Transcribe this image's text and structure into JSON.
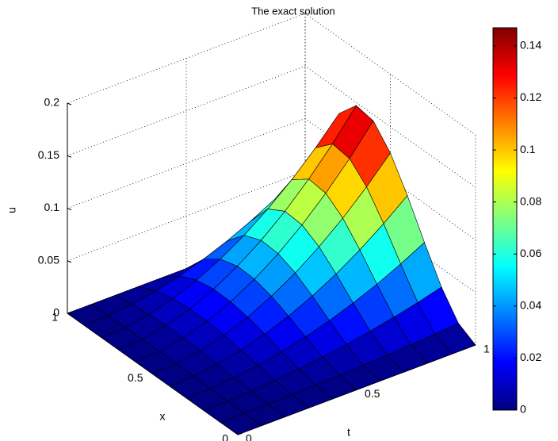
{
  "chart_data": {
    "type": "surface",
    "title": "The exact solution",
    "xlabel": "x",
    "ylabel": "t",
    "zlabel": "u",
    "x": [
      0,
      0.1,
      0.2,
      0.3,
      0.4,
      0.5,
      0.6,
      0.7,
      0.8,
      0.9,
      1
    ],
    "y": [
      0,
      0.1,
      0.2,
      0.3,
      0.4,
      0.5,
      0.6,
      0.7,
      0.8,
      0.9,
      1
    ],
    "z": [
      [
        0,
        0,
        0,
        0,
        0,
        0,
        0,
        0,
        0,
        0,
        0
      ],
      [
        0,
        0.0001,
        0.0003,
        0.0006,
        0.001,
        0.0013,
        0.0014,
        0.0015,
        0.0013,
        0.0008,
        0
      ],
      [
        0,
        0.0004,
        0.0013,
        0.0025,
        0.0038,
        0.005,
        0.0058,
        0.0059,
        0.0051,
        0.0032,
        0
      ],
      [
        0,
        0.0008,
        0.0029,
        0.0057,
        0.0086,
        0.0113,
        0.013,
        0.0132,
        0.0115,
        0.0073,
        0
      ],
      [
        0,
        0.0014,
        0.0051,
        0.0101,
        0.0154,
        0.02,
        0.023,
        0.0235,
        0.0205,
        0.013,
        0
      ],
      [
        0,
        0.0023,
        0.008,
        0.0158,
        0.024,
        0.0313,
        0.036,
        0.0368,
        0.032,
        0.0203,
        0
      ],
      [
        0,
        0.0032,
        0.0115,
        0.0227,
        0.0346,
        0.045,
        0.0518,
        0.0529,
        0.0461,
        0.0292,
        0
      ],
      [
        0,
        0.0044,
        0.0157,
        0.0309,
        0.047,
        0.0613,
        0.0706,
        0.072,
        0.0627,
        0.0397,
        0
      ],
      [
        0,
        0.0058,
        0.0205,
        0.0403,
        0.0614,
        0.08,
        0.0922,
        0.0941,
        0.0819,
        0.0518,
        0
      ],
      [
        0,
        0.0073,
        0.0259,
        0.051,
        0.0778,
        0.1013,
        0.1166,
        0.1191,
        0.1037,
        0.0656,
        0
      ],
      [
        0,
        0.009,
        0.032,
        0.063,
        0.096,
        0.125,
        0.144,
        0.147,
        0.128,
        0.081,
        0
      ]
    ],
    "xlim": [
      0,
      1
    ],
    "xticks": [
      0,
      0.5,
      1
    ],
    "ylim": [
      0,
      1
    ],
    "yticks": [
      0,
      0.5,
      1
    ],
    "zlim": [
      0,
      0.2
    ],
    "zticks": [
      0,
      0.05,
      0.1,
      0.15,
      0.2
    ],
    "colormap": "jet",
    "clim": [
      0,
      0.147
    ],
    "cticks": [
      0,
      0.02,
      0.04,
      0.06,
      0.08,
      0.1,
      0.12,
      0.14
    ],
    "grid": true
  }
}
